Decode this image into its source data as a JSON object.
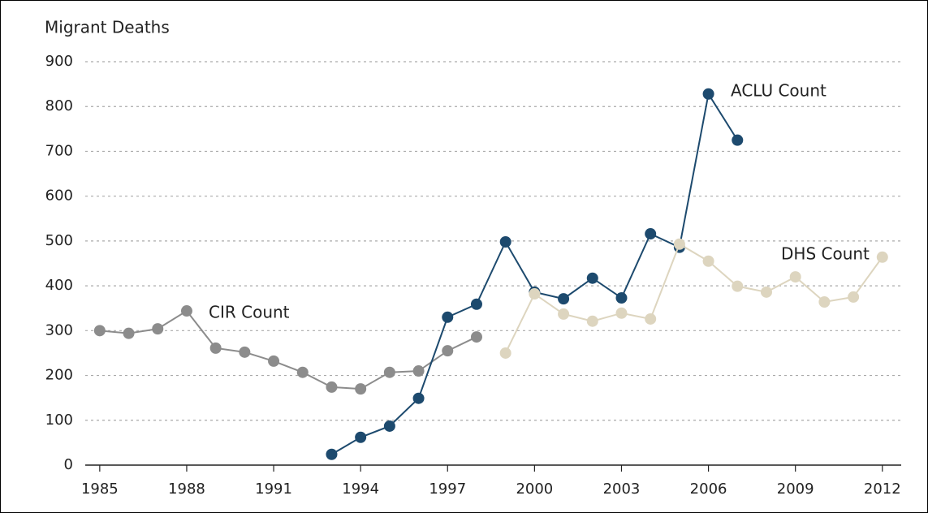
{
  "chart_data": {
    "type": "line",
    "y_label": "Migrant Deaths",
    "xlim": [
      1984.5,
      2012.65
    ],
    "xticks": [
      1985,
      1988,
      1991,
      1994,
      1997,
      2000,
      2003,
      2006,
      2009,
      2012
    ],
    "ylim": [
      0,
      900
    ],
    "yticks": [
      0,
      100,
      200,
      300,
      400,
      500,
      600,
      700,
      800,
      900
    ],
    "grid": true,
    "series": [
      {
        "name": "CIR Count",
        "color": "#8c8c8c",
        "x": [
          1985,
          1986,
          1987,
          1988,
          1989,
          1990,
          1991,
          1992,
          1993,
          1994,
          1995,
          1996,
          1997,
          1998
        ],
        "values": [
          300,
          294,
          304,
          344,
          261,
          252,
          232,
          207,
          174,
          170,
          207,
          210,
          255,
          286
        ]
      },
      {
        "name": "ACLU Count",
        "color": "#1d4a6e",
        "x": [
          1993,
          1994,
          1995,
          1996,
          1997,
          1998,
          1999,
          2000,
          2001,
          2002,
          2003,
          2004,
          2005,
          2006,
          2007
        ],
        "values": [
          24,
          62,
          87,
          149,
          330,
          359,
          498,
          386,
          371,
          417,
          373,
          516,
          486,
          828,
          725
        ]
      },
      {
        "name": "DHS Count",
        "color": "#ddd5bf",
        "x": [
          1999,
          2000,
          2001,
          2002,
          2003,
          2004,
          2005,
          2006,
          2007,
          2008,
          2009,
          2010,
          2011,
          2012
        ],
        "values": [
          250,
          382,
          337,
          321,
          339,
          326,
          493,
          455,
          399,
          386,
          420,
          364,
          375,
          464
        ]
      }
    ]
  }
}
